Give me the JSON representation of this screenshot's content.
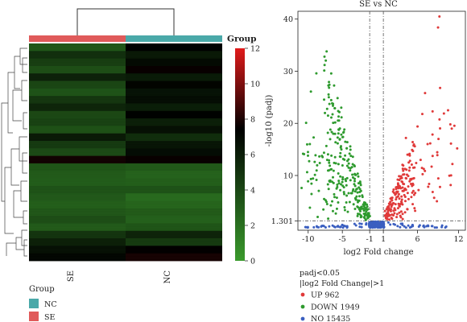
{
  "chart_data": [
    {
      "type": "heatmap",
      "group_label": "Group",
      "columns": [
        "SE",
        "NC"
      ],
      "column_colors": {
        "SE": "#e05a5a",
        "NC": "#4aa9a9"
      },
      "colorbar": {
        "ticks": [
          "0",
          "2",
          "4",
          "6",
          "8",
          "10",
          "12"
        ],
        "min": 0,
        "max": 12,
        "low_color": "#3a9a2c",
        "mid_color": "#000000",
        "high_color": "#e11b1b"
      },
      "legend": {
        "title": "Group",
        "items": [
          {
            "label": "NC",
            "color": "#4aa9a9"
          },
          {
            "label": "SE",
            "color": "#e05a5a"
          }
        ]
      },
      "row_values": {
        "SE": [
          3.2,
          5.1,
          4.4,
          3.6,
          5.8,
          4.0,
          3.4,
          4.8,
          5.6,
          3.9,
          4.2,
          3.5,
          6.2,
          4.6,
          3.8,
          7.8,
          3.3,
          3.0,
          2.9,
          3.4,
          3.1,
          2.8,
          3.2,
          3.6,
          3.0,
          4.9,
          5.9,
          6.6,
          7.1
        ],
        "NC": [
          7.4,
          6.2,
          6.9,
          7.6,
          6.1,
          7.2,
          6.5,
          6.8,
          6.0,
          7.3,
          5.9,
          6.6,
          5.2,
          6.4,
          6.8,
          7.6,
          3.1,
          2.6,
          2.8,
          3.4,
          2.2,
          2.5,
          3.0,
          2.7,
          3.3,
          5.7,
          4.6,
          7.5,
          7.9
        ]
      }
    },
    {
      "type": "scatter",
      "title": "SE vs NC",
      "xlabel": "log2 Fold change",
      "ylabel": "-log10 (padj)",
      "x_ticks": [
        "-10",
        "-5",
        "-1",
        "1",
        "6",
        "12"
      ],
      "x_tick_values": [
        -10,
        -5,
        -1,
        1,
        6,
        12
      ],
      "y_ticks": [
        "1.301",
        "10",
        "20",
        "30",
        "40"
      ],
      "y_tick_values": [
        1.301,
        10,
        20,
        30,
        40
      ],
      "xlim": [
        -11.5,
        13
      ],
      "ylim": [
        -0.5,
        41.5
      ],
      "thresholds": {
        "x": [
          -1,
          1
        ],
        "y": 1.301
      },
      "legend": {
        "title_line1": "padj<0.05",
        "title_line2": "|log2 Fold Change|>1",
        "items": [
          {
            "label": "UP 962",
            "color": "#e03a3a"
          },
          {
            "label": "DOWN 1949",
            "color": "#2e9a2e"
          },
          {
            "label": "NO 15435",
            "color": "#3b5fc0"
          }
        ]
      },
      "series": [
        {
          "name": "UP",
          "color": "#e03a3a",
          "points": [
            [
              9.2,
              40.5
            ],
            [
              9.0,
              38.4
            ],
            [
              9.3,
              26.8
            ],
            [
              7.1,
              25.8
            ],
            [
              8.2,
              22.3
            ],
            [
              6.7,
              21.8
            ],
            [
              10.8,
              19.8
            ],
            [
              11.8,
              15.2
            ],
            [
              8.9,
              13.9
            ],
            [
              5.8,
              12.4
            ],
            [
              4.9,
              12.8
            ],
            [
              3.9,
              10.9
            ],
            [
              3.1,
              9.2
            ],
            [
              2.5,
              7.3
            ],
            [
              2.2,
              5.7
            ],
            [
              1.6,
              3.9
            ],
            [
              1.3,
              2.4
            ],
            [
              4.3,
              17.2
            ],
            [
              6.0,
              19.4
            ],
            [
              5.6,
              15.6
            ]
          ]
        },
        {
          "name": "DOWN",
          "color": "#2e9a2e",
          "points": [
            [
              -7.3,
              33.8
            ],
            [
              -7.6,
              31.2
            ],
            [
              -8.8,
              29.6
            ],
            [
              -9.6,
              26.1
            ],
            [
              -10.3,
              20.1
            ],
            [
              -9.2,
              17.3
            ],
            [
              -10.6,
              14.1
            ],
            [
              -8.3,
              12.4
            ],
            [
              -6.6,
              11.2
            ],
            [
              -5.3,
              9.8
            ],
            [
              -4.4,
              8.1
            ],
            [
              -3.6,
              6.6
            ],
            [
              -2.7,
              5.2
            ],
            [
              -2.2,
              4.0
            ],
            [
              -1.6,
              2.7
            ],
            [
              -1.3,
              1.8
            ]
          ]
        },
        {
          "name": "NO",
          "color": "#3b5fc0",
          "points": [
            [
              -0.9,
              0.1
            ],
            [
              -0.5,
              0.4
            ],
            [
              0.0,
              0.9
            ],
            [
              0.5,
              0.4
            ],
            [
              0.9,
              0.2
            ],
            [
              -4.6,
              0.3
            ],
            [
              -6.2,
              0.2
            ],
            [
              -8.1,
              0.2
            ],
            [
              -10.4,
              0.1
            ],
            [
              3.8,
              0.5
            ],
            [
              5.3,
              0.3
            ],
            [
              6.2,
              0.2
            ],
            [
              8.1,
              0.3
            ],
            [
              9.6,
              0.4
            ],
            [
              10.2,
              0.2
            ]
          ]
        }
      ],
      "trends": {
        "up_arms": [
          {
            "x": [
              1.2,
              5.5
            ],
            "y_max": [
              2.2,
              17.5
            ],
            "count": 160
          },
          {
            "x": [
              4.5,
              11.5
            ],
            "y_max": [
              8.5,
              28.5
            ],
            "count": 40
          }
        ],
        "down_arms": [
          {
            "x": [
              -7.5,
              -1.1
            ],
            "y_max": [
              33.5,
              2.2
            ],
            "count": 220
          },
          {
            "x": [
              -10.8,
              -6.0
            ],
            "y_max": [
              22.5,
              10.5
            ],
            "count": 40
          }
        ],
        "no_band": {
          "x": [
            -10.5,
            10.5
          ],
          "y": [
            0,
            1.2
          ],
          "count": 260
        }
      }
    }
  ]
}
